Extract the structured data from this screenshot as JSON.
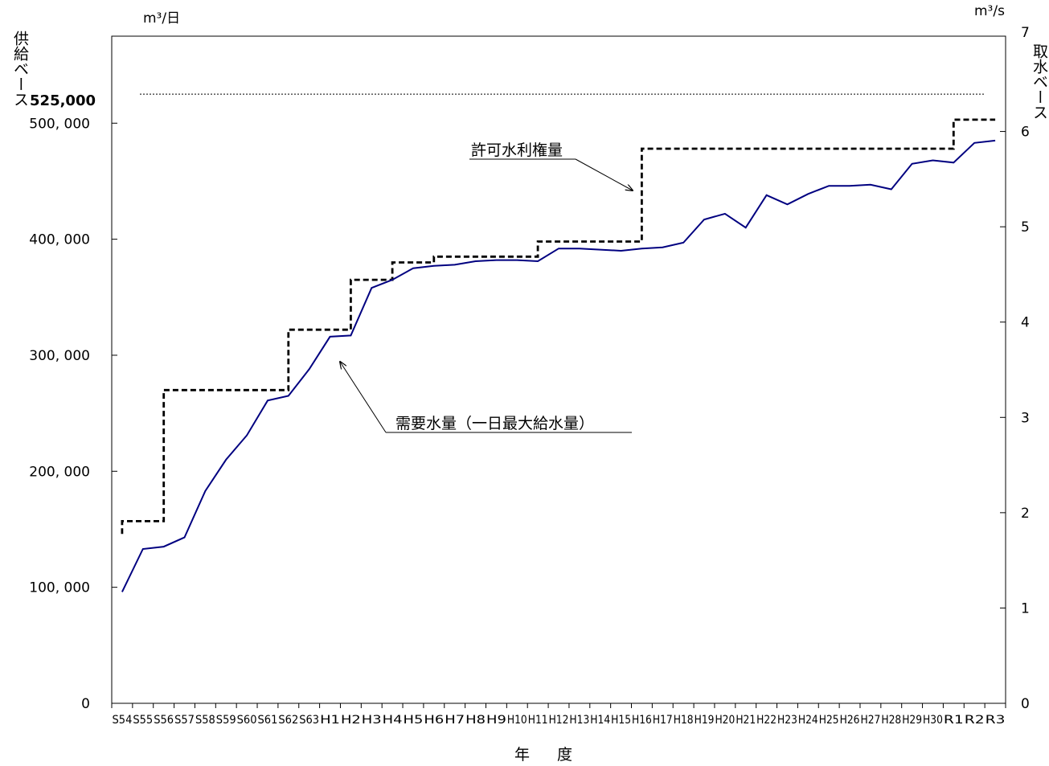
{
  "chart_data": {
    "type": "line",
    "left_unit": "m³/日",
    "right_unit": "m³/s",
    "left_axis_label": "供給ベース",
    "right_axis_label": "取水ベース",
    "xlabel": "年 度",
    "ylim_left": [
      0,
      575000
    ],
    "ylim_right": [
      0,
      7
    ],
    "left_ticks": [
      0,
      100000,
      200000,
      300000,
      400000,
      500000
    ],
    "left_tick_labels": [
      "0",
      "100, 000",
      "200, 000",
      "300, 000",
      "400, 000",
      "500, 000"
    ],
    "right_ticks": [
      0,
      1,
      2,
      3,
      4,
      5,
      6,
      7
    ],
    "right_tick_labels": [
      "0",
      "1",
      "2",
      "3",
      "4",
      "5",
      "6",
      "7"
    ],
    "reference_line": {
      "value": 525000,
      "label": "525,000"
    },
    "categories": [
      "S54",
      "S55",
      "S56",
      "S57",
      "S58",
      "S59",
      "S60",
      "S61",
      "S62",
      "S63",
      "H1",
      "H2",
      "H3",
      "H4",
      "H5",
      "H6",
      "H7",
      "H8",
      "H9",
      "H10",
      "H11",
      "H12",
      "H13",
      "H14",
      "H15",
      "H16",
      "H17",
      "H18",
      "H19",
      "H20",
      "H21",
      "H22",
      "H23",
      "H24",
      "H25",
      "H26",
      "H27",
      "H28",
      "H29",
      "H30",
      "R1",
      "R2",
      "R3"
    ],
    "series": [
      {
        "name": "需要水量（一日最大給水量）",
        "style": "solid",
        "color": "#000080",
        "values": [
          96000,
          133000,
          135000,
          143000,
          183000,
          210000,
          231000,
          261000,
          265000,
          288000,
          316000,
          317000,
          358000,
          365000,
          375000,
          377000,
          378000,
          381000,
          382000,
          382000,
          381000,
          392000,
          392000,
          391000,
          390000,
          392000,
          393000,
          397000,
          417000,
          422000,
          410000,
          438000,
          430000,
          439000,
          446000,
          446000,
          447000,
          443000,
          465000,
          468000,
          466000,
          483000,
          485000
        ]
      },
      {
        "name": "許可水利権量",
        "style": "dashed-step",
        "color": "#000000",
        "values": [
          157000,
          157000,
          270000,
          270000,
          270000,
          270000,
          270000,
          270000,
          322000,
          322000,
          322000,
          365000,
          365000,
          380000,
          380000,
          385000,
          385000,
          385000,
          385000,
          385000,
          398000,
          398000,
          398000,
          398000,
          398000,
          478000,
          478000,
          478000,
          478000,
          478000,
          478000,
          478000,
          478000,
          478000,
          478000,
          478000,
          478000,
          478000,
          478000,
          478000,
          503000,
          503000,
          503000
        ],
        "start_value": 146000
      }
    ]
  }
}
